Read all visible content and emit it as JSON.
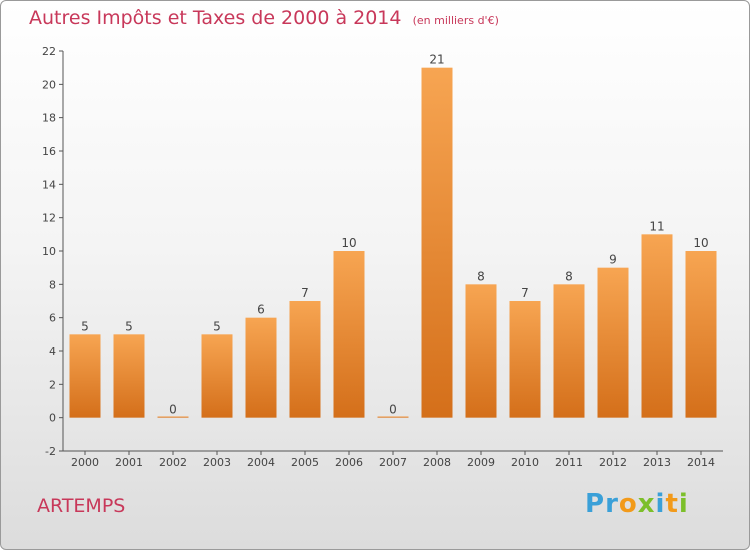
{
  "chart_data": {
    "type": "bar",
    "title": "Autres Impôts et Taxes de 2000 à 2014",
    "subtitle": "(en milliers d'€)",
    "categories": [
      "2000",
      "2001",
      "2002",
      "2003",
      "2004",
      "2005",
      "2006",
      "2007",
      "2008",
      "2009",
      "2010",
      "2011",
      "2012",
      "2013",
      "2014"
    ],
    "values": [
      5,
      5,
      0,
      5,
      6,
      7,
      10,
      0,
      21,
      8,
      7,
      8,
      9,
      11,
      10
    ],
    "ylim": [
      -2,
      22
    ],
    "yticks": [
      -2,
      0,
      2,
      4,
      6,
      8,
      10,
      12,
      14,
      16,
      18,
      20,
      22
    ],
    "xlabel": "",
    "ylabel": "",
    "grid": false,
    "bar_color": "#f0943c"
  },
  "footer": {
    "commune": "ARTEMPS",
    "logo_letters": [
      {
        "ch": "P",
        "color": "#3aa0d8"
      },
      {
        "ch": "r",
        "color": "#3aa0d8"
      },
      {
        "ch": "o",
        "color": "#f29a1a"
      },
      {
        "ch": "x",
        "color": "#7cbf2a"
      },
      {
        "ch": "i",
        "color": "#3aa0d8"
      },
      {
        "ch": "t",
        "color": "#f29a1a"
      },
      {
        "ch": "i",
        "color": "#7cbf2a"
      }
    ]
  }
}
